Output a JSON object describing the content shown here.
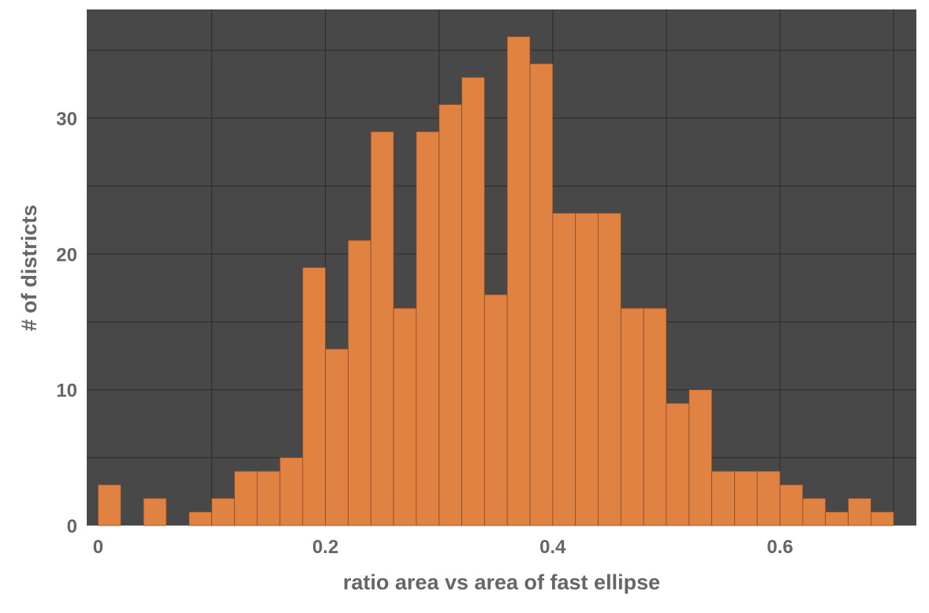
{
  "chart_data": {
    "type": "bar",
    "subtype": "histogram",
    "xlabel": "ratio area vs area of fast ellipse",
    "ylabel": "# of districts",
    "bin_width": 0.02,
    "bins": [
      {
        "start": 0.0,
        "count": 3
      },
      {
        "start": 0.02,
        "count": 0
      },
      {
        "start": 0.04,
        "count": 2
      },
      {
        "start": 0.06,
        "count": 0
      },
      {
        "start": 0.08,
        "count": 1
      },
      {
        "start": 0.1,
        "count": 2
      },
      {
        "start": 0.12,
        "count": 4
      },
      {
        "start": 0.14,
        "count": 4
      },
      {
        "start": 0.16,
        "count": 5
      },
      {
        "start": 0.18,
        "count": 19
      },
      {
        "start": 0.2,
        "count": 13
      },
      {
        "start": 0.22,
        "count": 21
      },
      {
        "start": 0.24,
        "count": 29
      },
      {
        "start": 0.26,
        "count": 16
      },
      {
        "start": 0.28,
        "count": 29
      },
      {
        "start": 0.3,
        "count": 31
      },
      {
        "start": 0.32,
        "count": 33
      },
      {
        "start": 0.34,
        "count": 17
      },
      {
        "start": 0.36,
        "count": 36
      },
      {
        "start": 0.38,
        "count": 34
      },
      {
        "start": 0.4,
        "count": 23
      },
      {
        "start": 0.42,
        "count": 23
      },
      {
        "start": 0.44,
        "count": 23
      },
      {
        "start": 0.46,
        "count": 16
      },
      {
        "start": 0.48,
        "count": 16
      },
      {
        "start": 0.5,
        "count": 9
      },
      {
        "start": 0.52,
        "count": 10
      },
      {
        "start": 0.54,
        "count": 4
      },
      {
        "start": 0.56,
        "count": 4
      },
      {
        "start": 0.58,
        "count": 4
      },
      {
        "start": 0.6,
        "count": 3
      },
      {
        "start": 0.62,
        "count": 2
      },
      {
        "start": 0.64,
        "count": 1
      },
      {
        "start": 0.66,
        "count": 2
      },
      {
        "start": 0.68,
        "count": 1
      }
    ],
    "xlim": [
      -0.01,
      0.72
    ],
    "ylim": [
      0,
      38
    ],
    "xticks": [
      {
        "value": 0,
        "label": "0"
      },
      {
        "value": 0.2,
        "label": "0.2"
      },
      {
        "value": 0.4,
        "label": "0.4"
      },
      {
        "value": 0.6,
        "label": "0.6"
      }
    ],
    "yticks": [
      {
        "value": 0,
        "label": "0"
      },
      {
        "value": 10,
        "label": "10"
      },
      {
        "value": 20,
        "label": "20"
      },
      {
        "value": 30,
        "label": "30"
      }
    ],
    "x_gridlines": [
      0.1,
      0.2,
      0.3,
      0.4,
      0.5,
      0.6,
      0.7
    ],
    "y_gridlines": [
      5,
      10,
      15,
      20,
      25,
      30,
      35
    ],
    "grid": true,
    "legend": "none",
    "colors": {
      "plot_background": "#484848",
      "bar_fill": "#e08242",
      "gridline": "#2a2a2a",
      "text": "#666666"
    }
  }
}
